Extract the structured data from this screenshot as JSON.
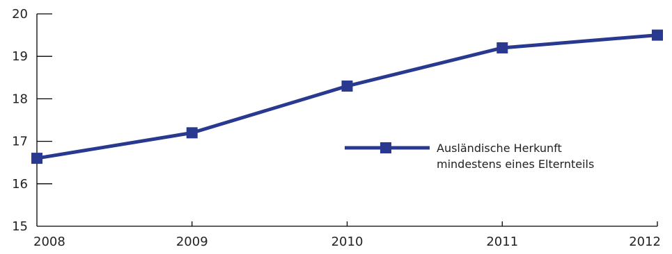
{
  "chart_data": {
    "type": "line",
    "title": "",
    "xlabel": "",
    "ylabel": "",
    "categories": [
      "2008",
      "2009",
      "2010",
      "2011",
      "2012"
    ],
    "series": [
      {
        "name": "Ausländische Herkunft mindestens eines Elternteils",
        "name_lines": [
          "Ausländische Herkunft",
          "mindestens eines Elternteils"
        ],
        "values": [
          16.6,
          17.2,
          18.3,
          19.2,
          19.5
        ]
      }
    ],
    "ylim": [
      15,
      20
    ],
    "yticks": [
      "15",
      "16",
      "17",
      "18",
      "19",
      "20"
    ],
    "grid": false,
    "legend_position": "center-right",
    "colors": {
      "series": "#2a3990",
      "axis": "#000000"
    }
  }
}
